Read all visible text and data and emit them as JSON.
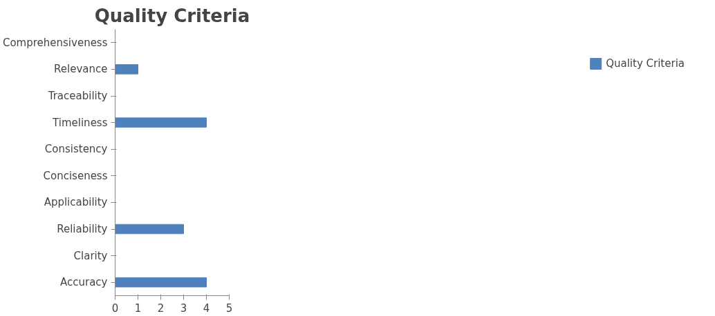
{
  "chart_data": {
    "type": "bar",
    "orientation": "horizontal",
    "title": "Quality Criteria",
    "categories": [
      "Comprehensiveness",
      "Relevance",
      "Traceability",
      "Timeliness",
      "Consistency",
      "Conciseness",
      "Applicability",
      "Reliability",
      "Clarity",
      "Accuracy"
    ],
    "series": [
      {
        "name": "Quality Criteria",
        "color": "#4f81bd",
        "values": [
          0,
          1,
          0,
          4,
          0,
          0,
          0,
          3,
          0,
          4
        ]
      }
    ],
    "xlim": [
      0,
      5
    ],
    "xticks": [
      0,
      1,
      2,
      3,
      4,
      5
    ],
    "grid": false,
    "legend": "right"
  }
}
